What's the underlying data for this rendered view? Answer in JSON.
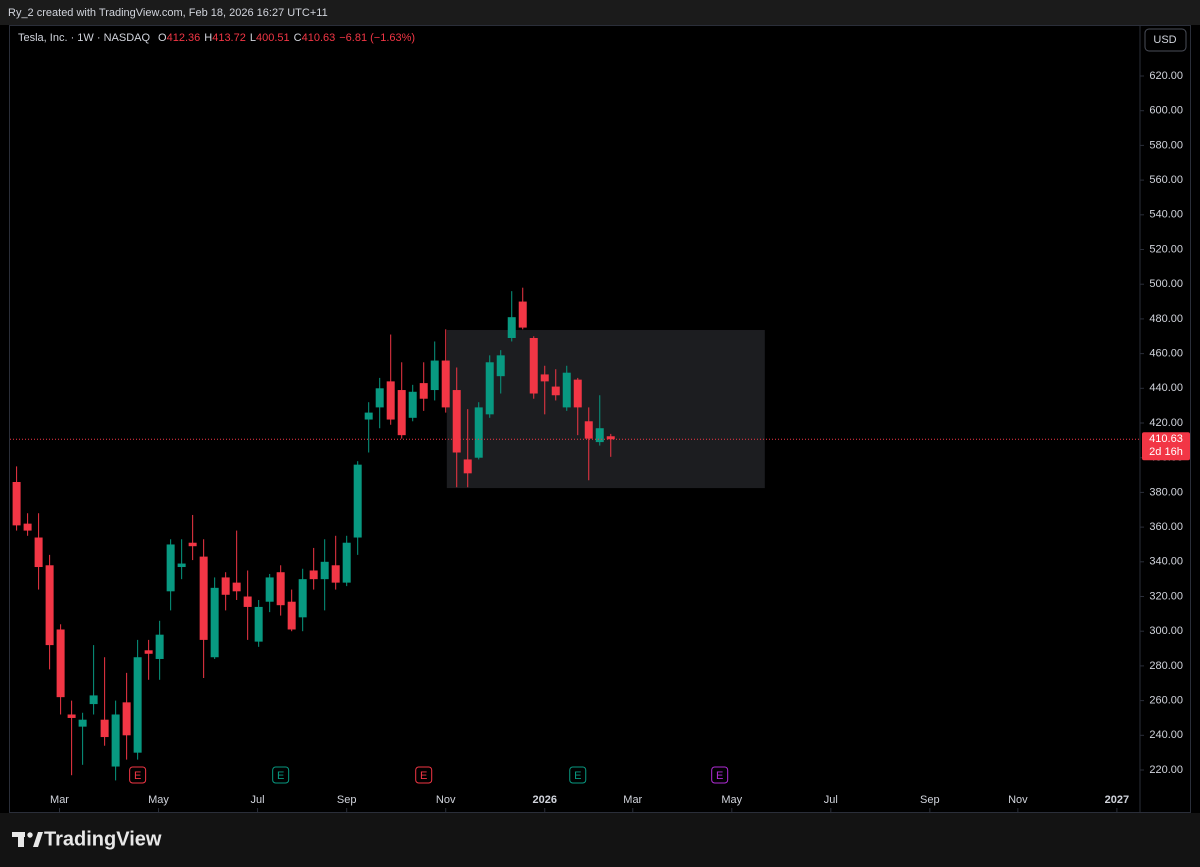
{
  "header": {
    "credit": "Ry_2 created with TradingView.com, Feb 18, 2026 16:27 UTC+11"
  },
  "brand": "TradingView",
  "chart_data": {
    "type": "candlestick",
    "title": "Tesla, Inc. · 1W · NASDAQ",
    "ohlc_labels": [
      "O",
      "H",
      "L",
      "C"
    ],
    "change": "−6.81 (−1.63%)",
    "currency": "USD",
    "countdown": "2d 16h",
    "up_color": "#089981",
    "down_color": "#f23645",
    "open": [
      386,
      362,
      354,
      338,
      301,
      252,
      245,
      258,
      249,
      222,
      259,
      230,
      289,
      284,
      323,
      337,
      351,
      343,
      285,
      331,
      328,
      320,
      294,
      317,
      334,
      317,
      308,
      335,
      330,
      338,
      328,
      354,
      422,
      429,
      444,
      439,
      423,
      443,
      439,
      456,
      439,
      399,
      400,
      425,
      447,
      469,
      490,
      469,
      448,
      441,
      429,
      445,
      421,
      409,
      412.36
    ],
    "high": [
      395,
      368,
      368,
      344,
      304,
      260,
      253,
      292,
      285,
      260,
      276,
      295,
      295,
      306,
      353,
      353,
      367,
      353,
      331,
      334,
      358,
      335,
      318,
      333,
      338,
      324,
      336,
      348,
      353,
      355,
      355,
      398,
      432,
      446,
      471,
      455,
      442,
      455,
      467,
      474,
      452,
      428,
      432,
      459,
      462,
      496,
      498,
      470,
      453,
      451,
      453,
      446,
      429,
      436,
      413.72
    ],
    "low": [
      358,
      355,
      324,
      278,
      252,
      217,
      223,
      252,
      234,
      214,
      226,
      226,
      272,
      272,
      312,
      330,
      341,
      273,
      284,
      312,
      318,
      295,
      291,
      311,
      309,
      300,
      300,
      324,
      312,
      324,
      326,
      344,
      403,
      417,
      419,
      411,
      421,
      427,
      433,
      426,
      383,
      383,
      399,
      423,
      437,
      467,
      474,
      434,
      425,
      433,
      427,
      413,
      387,
      407,
      400.51
    ],
    "close": [
      361,
      358,
      337,
      292,
      262,
      250,
      249,
      263,
      239,
      252,
      240,
      285,
      287,
      298,
      350,
      339,
      349,
      295,
      325,
      321,
      323,
      314,
      314,
      331,
      315,
      301,
      330,
      330,
      340,
      328,
      351,
      396,
      426,
      440,
      422,
      413,
      438,
      434,
      456,
      429,
      403,
      391,
      429,
      455,
      459,
      481,
      475,
      437,
      444,
      436,
      449,
      429,
      411,
      417,
      410.63
    ],
    "xlim": [
      -0.6,
      102.1
    ],
    "xticks": [
      {
        "value": 3.9,
        "label": "Mar"
      },
      {
        "value": 12.9,
        "label": "May"
      },
      {
        "value": 21.9,
        "label": "Jul"
      },
      {
        "value": 30,
        "label": "Sep"
      },
      {
        "value": 39,
        "label": "Nov"
      },
      {
        "value": 48,
        "label": "2026"
      },
      {
        "value": 56,
        "label": "Mar"
      },
      {
        "value": 65,
        "label": "May"
      },
      {
        "value": 74,
        "label": "Jul"
      },
      {
        "value": 83,
        "label": "Sep"
      },
      {
        "value": 91,
        "label": "Nov"
      },
      {
        "value": 100,
        "label": "2027"
      }
    ],
    "ylim": [
      195.8,
      649.4
    ],
    "yticks": [
      {
        "value": 220,
        "label": "220.00"
      },
      {
        "value": 240,
        "label": "240.00"
      },
      {
        "value": 260,
        "label": "260.00"
      },
      {
        "value": 280,
        "label": "280.00"
      },
      {
        "value": 300,
        "label": "300.00"
      },
      {
        "value": 320,
        "label": "320.00"
      },
      {
        "value": 340,
        "label": "340.00"
      },
      {
        "value": 360,
        "label": "360.00"
      },
      {
        "value": 380,
        "label": "380.00"
      },
      {
        "value": 400,
        "label": "400.00"
      },
      {
        "value": 420,
        "label": "420.00"
      },
      {
        "value": 440,
        "label": "440.00"
      },
      {
        "value": 460,
        "label": "460.00"
      },
      {
        "value": 480,
        "label": "480.00"
      },
      {
        "value": 500,
        "label": "500.00"
      },
      {
        "value": 520,
        "label": "520.00"
      },
      {
        "value": 540,
        "label": "540.00"
      },
      {
        "value": 560,
        "label": "560.00"
      },
      {
        "value": 580,
        "label": "580.00"
      },
      {
        "value": 600,
        "label": "600.00"
      },
      {
        "value": 620,
        "label": "620.00"
      }
    ],
    "box": {
      "x": [
        39.1,
        68
      ],
      "y": [
        382.5,
        473.6
      ],
      "color": "#1c1d20"
    },
    "events": [
      {
        "x": 11,
        "label": "E",
        "color": "#f23645"
      },
      {
        "x": 24,
        "label": "E",
        "color": "#089981"
      },
      {
        "x": 37,
        "label": "E",
        "color": "#f23645"
      },
      {
        "x": 51,
        "label": "E",
        "color": "#089981"
      },
      {
        "x": 63.9,
        "label": "E",
        "color": "#b02cd6"
      }
    ]
  }
}
